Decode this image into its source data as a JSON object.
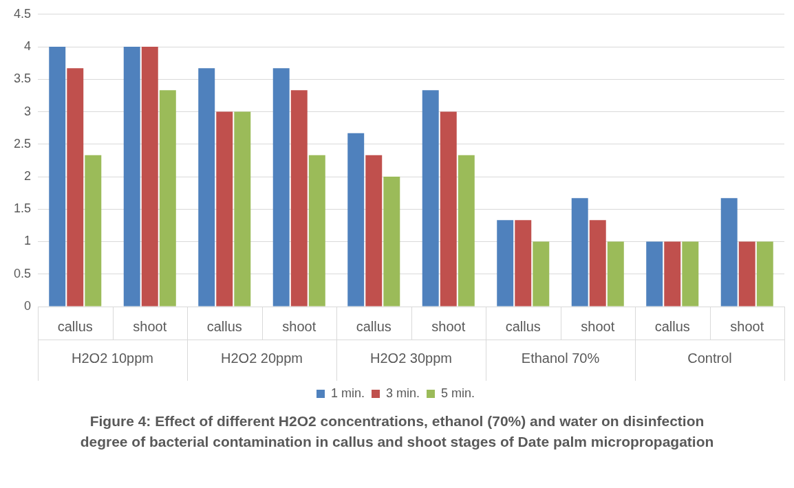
{
  "chart_data": {
    "type": "bar",
    "title": "Figure 4: Effect of different H2O2 concentrations, ethanol (70%) and water on disinfection degree of bacterial contamination in callus and shoot stages of Date palm micropropagation",
    "categories": [
      "callus",
      "shoot",
      "callus",
      "shoot",
      "callus",
      "shoot",
      "callus",
      "shoot",
      "callus",
      "shoot"
    ],
    "annotations": [
      "H2O2 10ppm",
      "H2O2 20ppm",
      "H2O2 30ppm",
      "Ethanol 70%",
      "Control"
    ],
    "series": [
      {
        "name": "1 min.",
        "color": "#4f81bd",
        "values": [
          4,
          4,
          3.67,
          3.67,
          2.67,
          3.33,
          1.33,
          1.67,
          1,
          1.67
        ]
      },
      {
        "name": "3 min.",
        "color": "#c0504d",
        "values": [
          3.67,
          4,
          3,
          3.33,
          2.33,
          3,
          1.33,
          1.33,
          1,
          1
        ]
      },
      {
        "name": "5 min.",
        "color": "#9bbb59",
        "values": [
          2.33,
          3.33,
          3,
          2.33,
          2,
          2.33,
          1,
          1,
          1,
          1
        ]
      }
    ],
    "ylim": [
      0,
      4.5
    ],
    "yticks": [
      0,
      0.5,
      1,
      1.5,
      2,
      2.5,
      3,
      3.5,
      4,
      4.5
    ],
    "grid": "y",
    "legend": "bottom"
  }
}
